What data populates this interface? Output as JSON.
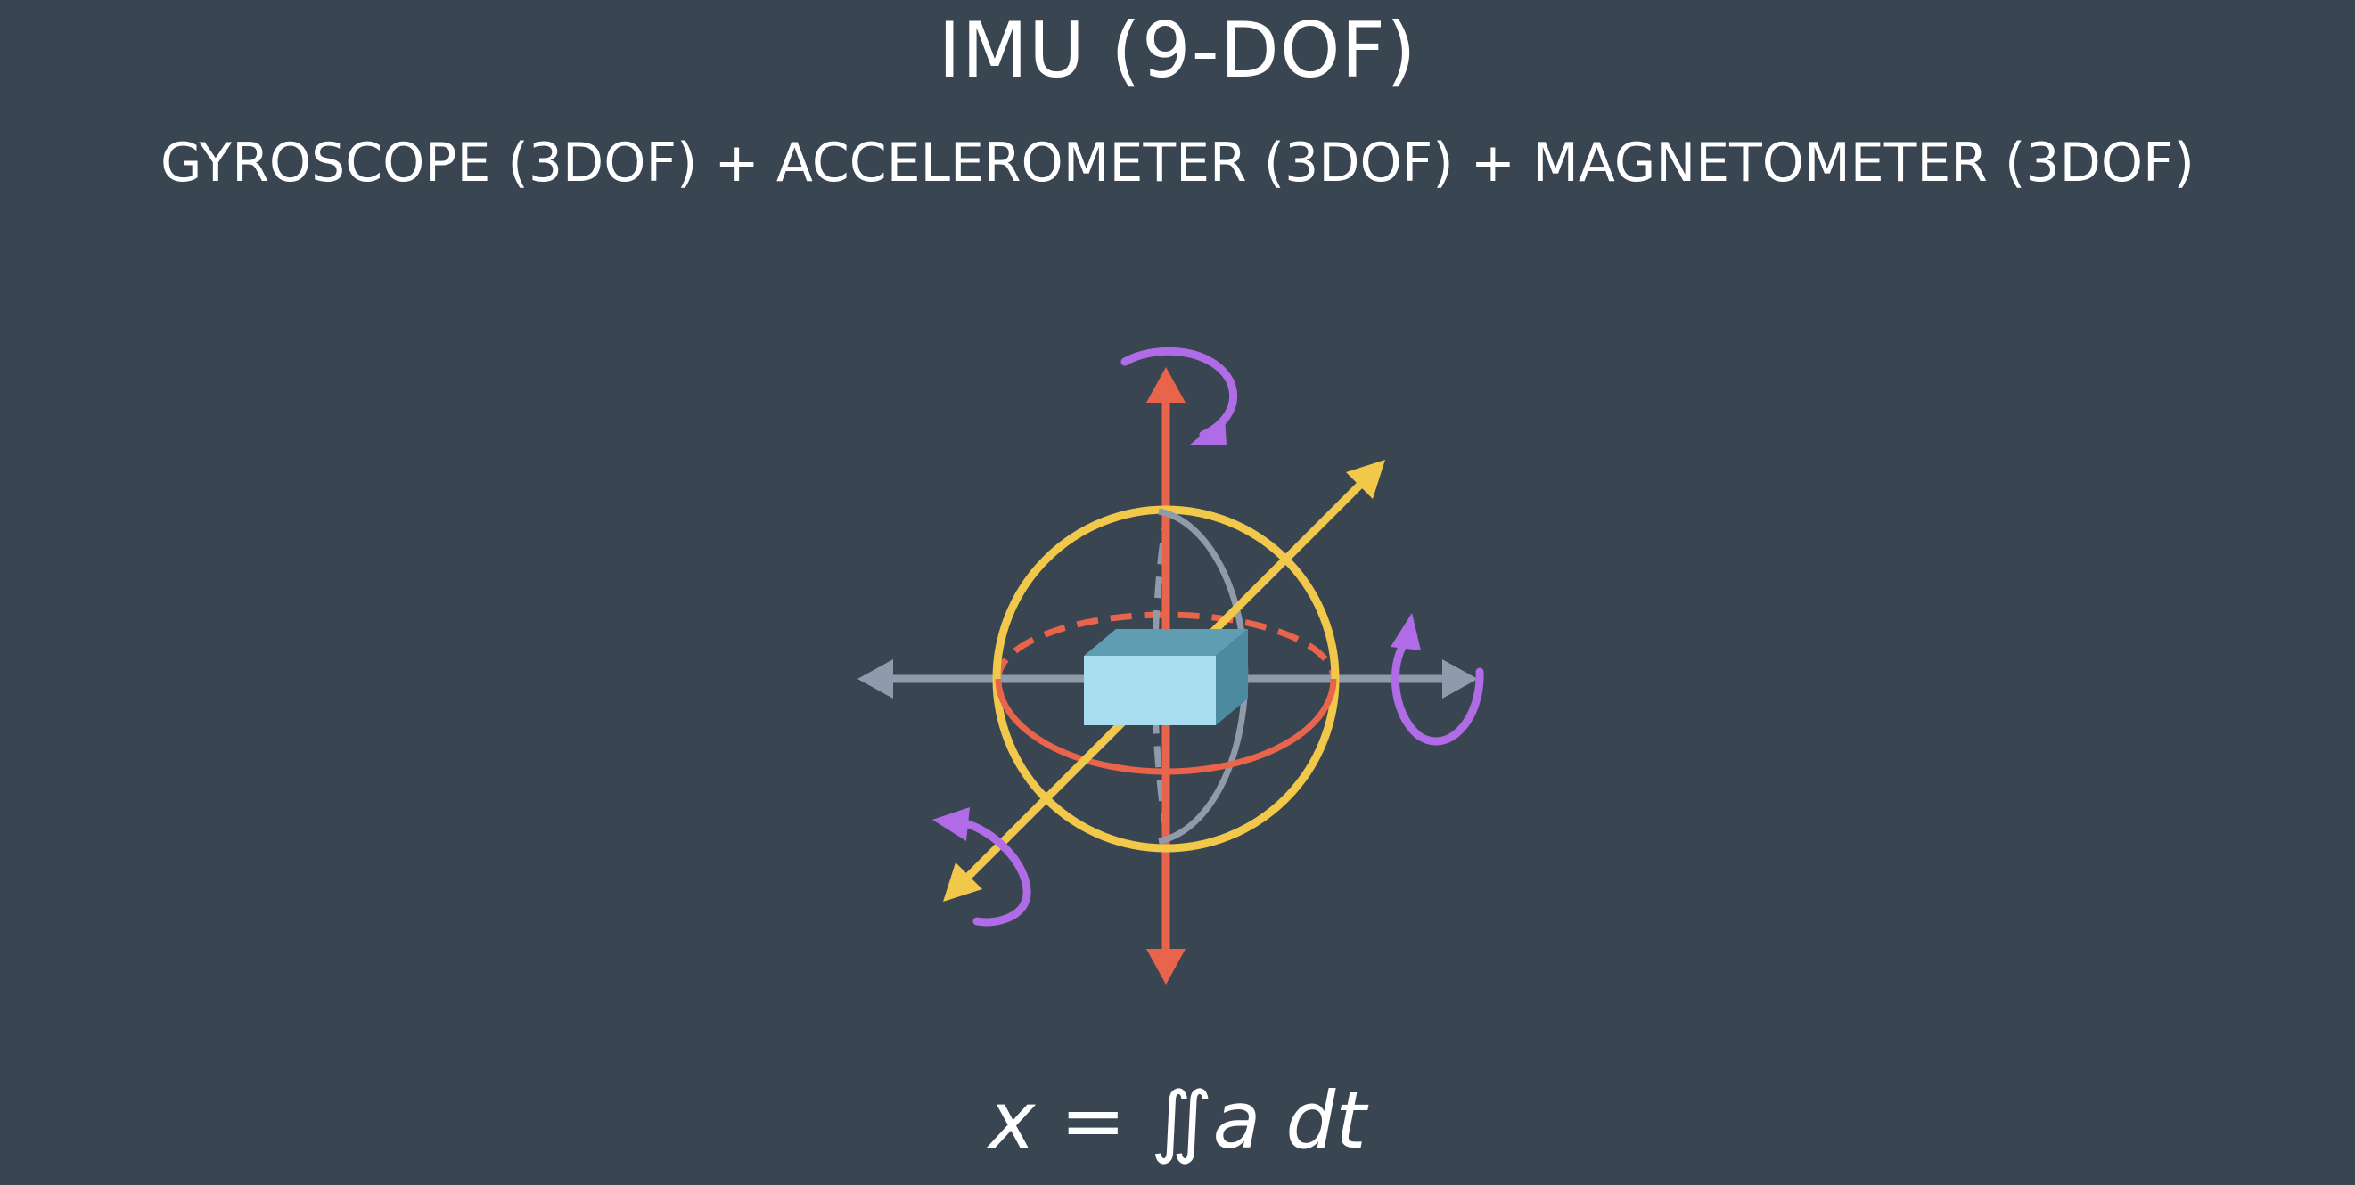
{
  "header": {
    "title": "IMU (9-DOF)",
    "subtitle": "GYROSCOPE (3DOF) + ACCELEROMETER (3DOF) + MAGNETOMETER (3DOF)"
  },
  "formula": "x = ∬a dt",
  "colors": {
    "background": "#3a4552",
    "text": "#ffffff",
    "vertical_axis": "#e8644a",
    "horizontal_axis": "#8f9baa",
    "depth_axis": "#f2c84b",
    "sphere_outline": "#f2c84b",
    "equator_ring": "#e8644a",
    "meridian_ring": "#8f9baa",
    "rotation_arrows": "#b06be6",
    "sensor_front": "#a8dcef",
    "sensor_top": "#5f9db3",
    "sensor_side": "#4c8aa0"
  },
  "icons": [
    "rotation-arrow-icon",
    "axis-arrow-icon",
    "sensor-block-icon"
  ]
}
